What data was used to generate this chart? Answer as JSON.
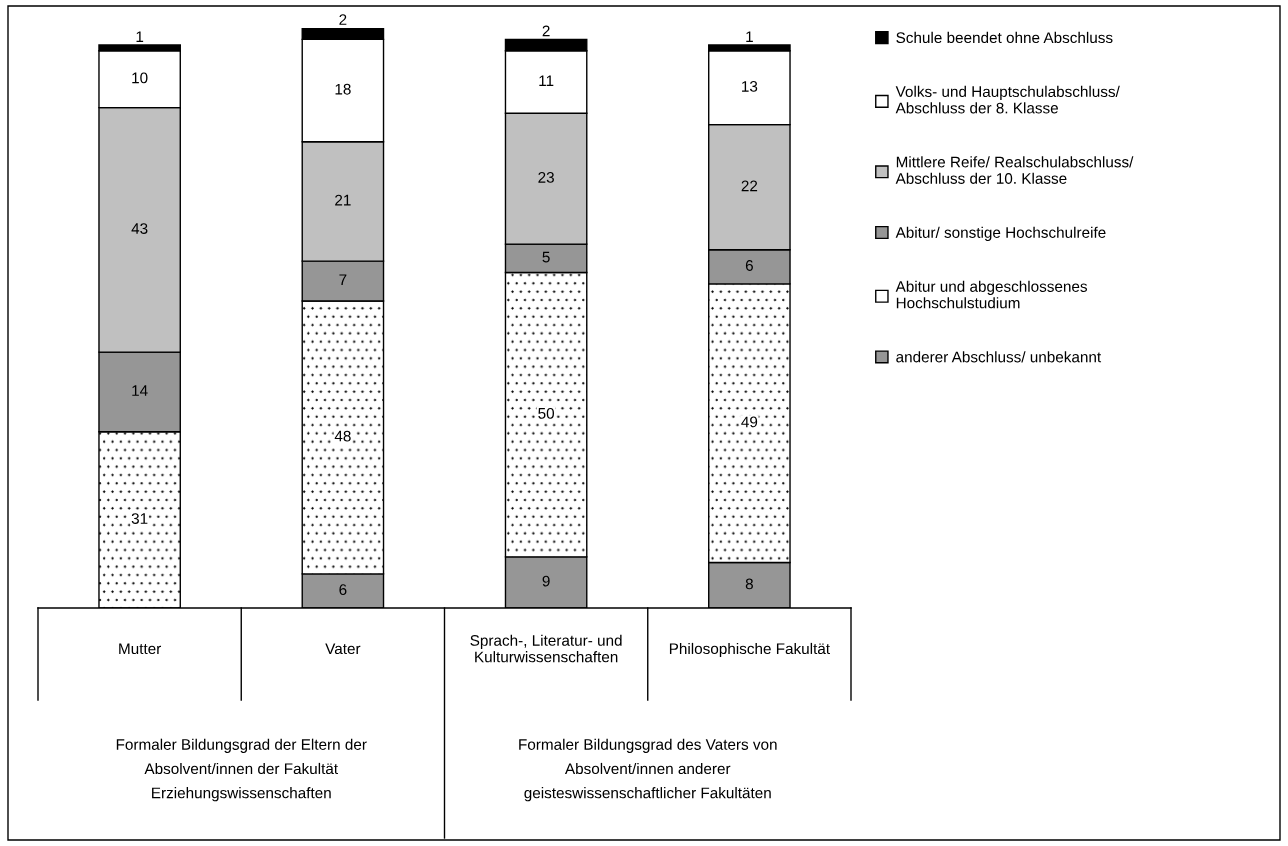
{
  "chart_data": {
    "type": "bar",
    "stacked": true,
    "data_labels": true,
    "legend": "right",
    "categories": [
      "Mutter",
      "Vater",
      "Sprach-, Literatur- und\nKulturwissenschaften",
      "Philosophische Fakultät"
    ],
    "series": [
      {
        "name": "anderer Abschluss/ unbekannt",
        "color": "#969696",
        "values": [
          null,
          6,
          9,
          8
        ]
      },
      {
        "name": "Abitur und abgeschlossenes\nHochschulstudium",
        "color": "#ffffff",
        "values": [
          31,
          48,
          50,
          49
        ]
      },
      {
        "name": "Abitur/ sonstige Hochschulreife",
        "color": "#969696",
        "values": [
          14,
          7,
          5,
          6
        ]
      },
      {
        "name": "Mittlere Reife/ Realschulabschluss/\nAbschluss der 10. Klasse",
        "color": "#c0c0c0",
        "values": [
          43,
          21,
          23,
          22
        ]
      },
      {
        "name": "Volks- und Hauptschulabschluss/\nAbschluss der 8. Klasse",
        "color": "#ffffff",
        "values": [
          10,
          18,
          11,
          13
        ]
      },
      {
        "name": "Schule beendet ohne Abschluss",
        "color": "#000000",
        "values": [
          1,
          2,
          2,
          1
        ]
      }
    ],
    "annotations": [
      "Formaler Bildungsgrad der Eltern der\nAbsolvent/innen der Fakultät\nErziehungswissenschaften",
      "Formaler Bildungsgrad des Vaters von\nAbsolvent/innen anderer\ngeisteswissenschaftlicher Fakultäten"
    ]
  }
}
